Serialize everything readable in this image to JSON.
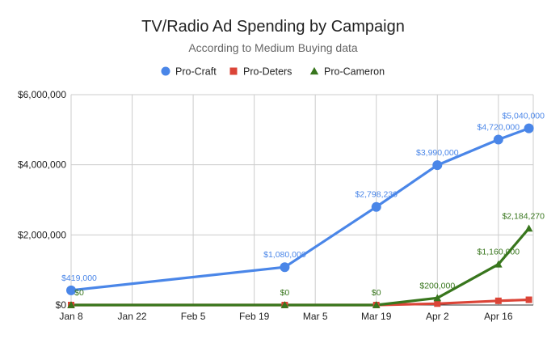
{
  "chart_data": {
    "type": "line",
    "title": "TV/Radio Ad Spending by Campaign",
    "subtitle": "According to Medium Buying data",
    "xlabel": "",
    "ylabel": "",
    "x_ticks": [
      "Jan 8",
      "Jan 22",
      "Feb 5",
      "Feb 19",
      "Mar 5",
      "Mar 19",
      "Apr 2",
      "Apr 16"
    ],
    "x_range": [
      "2024-01-08",
      "2024-04-23"
    ],
    "y_ticks": [
      "$0",
      "$2,000,000",
      "$4,000,000",
      "$6,000,000"
    ],
    "ylim": [
      0,
      6000000
    ],
    "grid": true,
    "legend_position": "top",
    "series": [
      {
        "name": "Pro-Craft",
        "color": "#4a86e8",
        "marker": "circle",
        "points": [
          {
            "x": "2024-01-08",
            "y": 419000,
            "label": "$419,000"
          },
          {
            "x": "2024-02-26",
            "y": 1080000,
            "label": "$1,080,000"
          },
          {
            "x": "2024-03-18",
            "y": 2798230,
            "label": "$2,798,230"
          },
          {
            "x": "2024-04-01",
            "y": 3990000,
            "label": "$3,990,000"
          },
          {
            "x": "2024-04-15",
            "y": 4720000,
            "label": "$4,720,000"
          },
          {
            "x": "2024-04-22",
            "y": 5040000,
            "label": "$5,040,000"
          }
        ]
      },
      {
        "name": "Pro-Deters",
        "color": "#db4437",
        "marker": "square",
        "points": [
          {
            "x": "2024-01-08",
            "y": 0,
            "label": ""
          },
          {
            "x": "2024-02-26",
            "y": 0,
            "label": ""
          },
          {
            "x": "2024-03-18",
            "y": 0,
            "label": ""
          },
          {
            "x": "2024-04-01",
            "y": 40000,
            "label": ""
          },
          {
            "x": "2024-04-15",
            "y": 120000,
            "label": ""
          },
          {
            "x": "2024-04-22",
            "y": 150000,
            "label": ""
          }
        ]
      },
      {
        "name": "Pro-Cameron",
        "color": "#38761d",
        "marker": "triangle",
        "points": [
          {
            "x": "2024-01-08",
            "y": 0,
            "label": "$0"
          },
          {
            "x": "2024-02-26",
            "y": 0,
            "label": "$0"
          },
          {
            "x": "2024-03-18",
            "y": 0,
            "label": "$0"
          },
          {
            "x": "2024-04-01",
            "y": 200000,
            "label": "$200,000"
          },
          {
            "x": "2024-04-15",
            "y": 1160000,
            "label": "$1,160,000"
          },
          {
            "x": "2024-04-22",
            "y": 2184270,
            "label": "$2,184,270"
          }
        ]
      }
    ]
  }
}
